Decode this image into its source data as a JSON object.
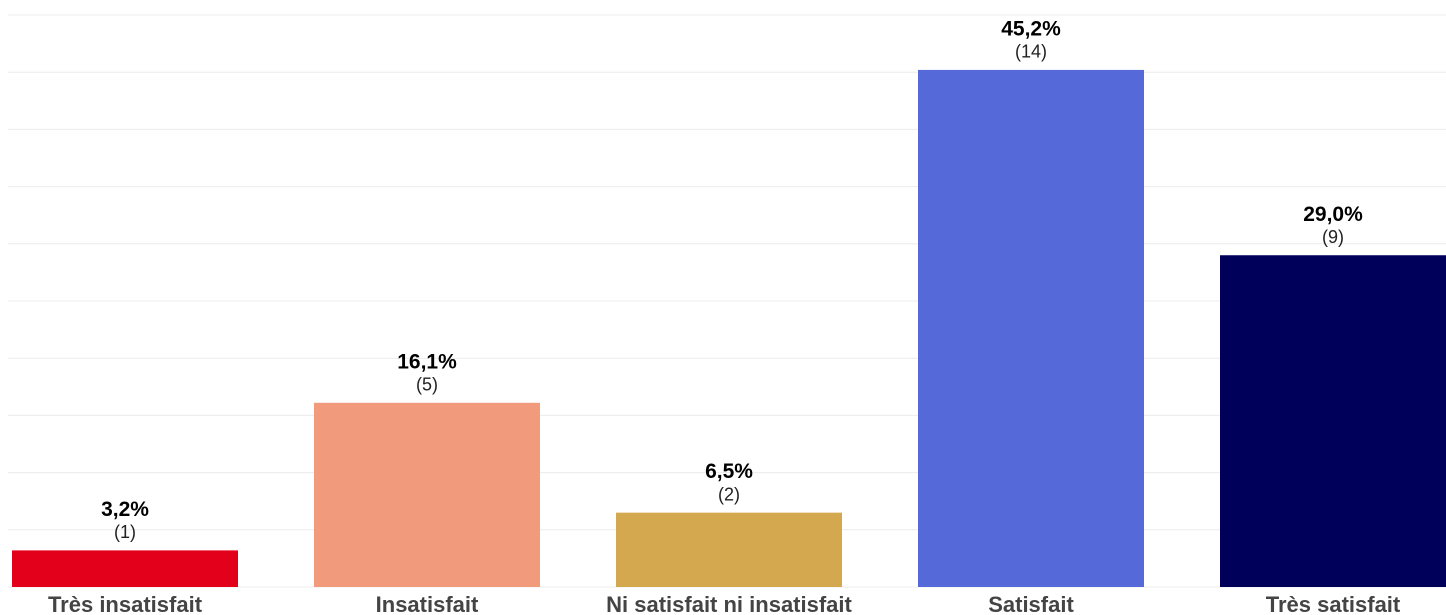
{
  "chart_data": {
    "type": "bar",
    "categories": [
      "Très insatisfait",
      "Insatisfait",
      "Ni satisfait ni insatisfait",
      "Satisfait",
      "Très satisfait"
    ],
    "values": [
      3.2,
      16.1,
      6.5,
      45.2,
      29.0
    ],
    "value_labels": [
      "3,2%",
      "16,1%",
      "6,5%",
      "45,2%",
      "29,0%"
    ],
    "counts": [
      1,
      5,
      2,
      14,
      9
    ],
    "count_labels": [
      "(1)",
      "(5)",
      "(2)",
      "(14)",
      "(9)"
    ],
    "colors": [
      "#e2001a",
      "#f29a7c",
      "#d4a84f",
      "#5669d9",
      "#00005a"
    ],
    "ylim": [
      0,
      50
    ],
    "yticks": [
      0,
      5,
      10,
      15,
      20,
      25,
      30,
      35,
      40,
      45,
      50
    ],
    "grid": true
  }
}
